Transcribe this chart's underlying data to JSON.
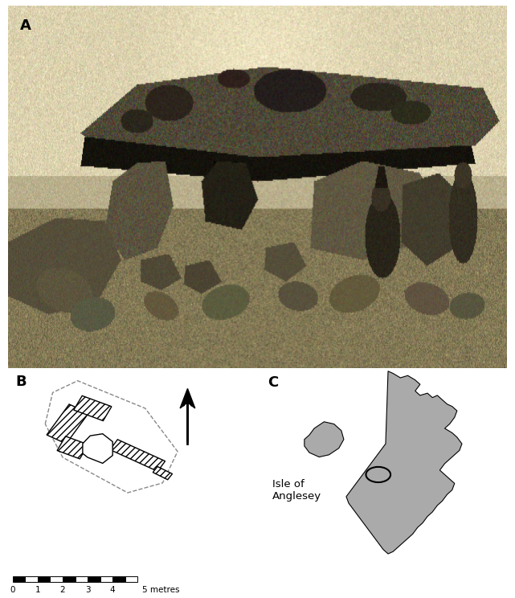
{
  "fig_width": 6.41,
  "fig_height": 7.44,
  "bg_color": "#ffffff",
  "panel_A_label": "A",
  "panel_B_label": "B",
  "panel_C_label": "C",
  "scale_bar_label": "5 metres",
  "scale_ticks": [
    "0",
    "1",
    "2",
    "3",
    "4"
  ],
  "isle_label": "Isle of\nAnglesey",
  "panel_label_fontsize": 13,
  "map_fill_color": "#aaaaaa",
  "map_edge_color": "#000000",
  "circle_color": "#000000"
}
